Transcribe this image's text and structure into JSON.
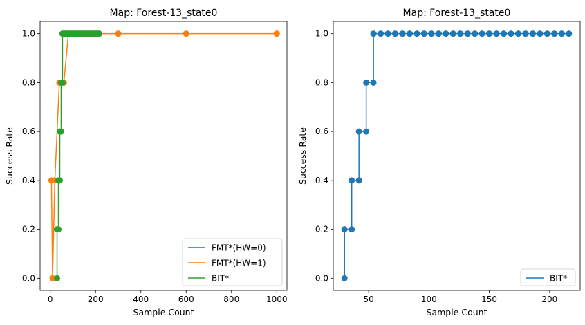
{
  "chart_data": [
    {
      "type": "line",
      "title": "Map: Forest-13_state0",
      "xlabel": "Sample Count",
      "ylabel": "Success Rate",
      "xlim": [
        -45,
        1045
      ],
      "ylim": [
        -0.05,
        1.05
      ],
      "xticks": [
        0,
        200,
        400,
        600,
        800,
        1000
      ],
      "yticks": [
        0.0,
        0.2,
        0.4,
        0.6,
        0.8,
        1.0
      ],
      "xtick_labels": [
        "0",
        "200",
        "400",
        "600",
        "800",
        "1000"
      ],
      "ytick_labels": [
        "0.0",
        "0.2",
        "0.4",
        "0.6",
        "0.8",
        "1.0"
      ],
      "legend_position": "lower-right",
      "series": [
        {
          "name": "FMT*(HW=0)",
          "color": "#1f77b4",
          "marker": "none",
          "x": [],
          "y": []
        },
        {
          "name": "FMT*(HW=1)",
          "color": "#ff7f0e",
          "marker": "circle",
          "x": [
            5,
            10,
            20,
            40,
            60,
            80,
            100,
            200,
            300,
            600,
            1000
          ],
          "y": [
            0.4,
            0.0,
            0.4,
            0.8,
            0.8,
            1.0,
            1.0,
            1.0,
            1.0,
            1.0,
            1.0
          ]
        },
        {
          "name": "BIT*",
          "color": "#2ca02c",
          "marker": "circle",
          "x": [
            30,
            30,
            36,
            36,
            42,
            42,
            48,
            48,
            54,
            54,
            60,
            66,
            72,
            78,
            84,
            90,
            96,
            102,
            108,
            114,
            120,
            126,
            132,
            138,
            144,
            150,
            156,
            162,
            168,
            174,
            180,
            186,
            192,
            198,
            204,
            210,
            216
          ],
          "y": [
            0.0,
            0.2,
            0.2,
            0.4,
            0.4,
            0.6,
            0.6,
            0.8,
            0.8,
            1.0,
            1.0,
            1.0,
            1.0,
            1.0,
            1.0,
            1.0,
            1.0,
            1.0,
            1.0,
            1.0,
            1.0,
            1.0,
            1.0,
            1.0,
            1.0,
            1.0,
            1.0,
            1.0,
            1.0,
            1.0,
            1.0,
            1.0,
            1.0,
            1.0,
            1.0,
            1.0,
            1.0
          ]
        }
      ]
    },
    {
      "type": "line",
      "title": "Map: Forest-13_state0",
      "xlabel": "Sample Count",
      "ylabel": "Success Rate",
      "xlim": [
        20.7,
        225.3
      ],
      "ylim": [
        -0.05,
        1.05
      ],
      "xticks": [
        50,
        100,
        150,
        200
      ],
      "yticks": [
        0.0,
        0.2,
        0.4,
        0.6,
        0.8,
        1.0
      ],
      "xtick_labels": [
        "50",
        "100",
        "150",
        "200"
      ],
      "ytick_labels": [
        "0.0",
        "0.2",
        "0.4",
        "0.6",
        "0.8",
        "1.0"
      ],
      "legend_position": "lower-right",
      "series": [
        {
          "name": "BIT*",
          "color": "#1f77b4",
          "marker": "circle",
          "x": [
            30,
            30,
            36,
            36,
            42,
            42,
            48,
            48,
            54,
            54,
            60,
            66,
            72,
            78,
            84,
            90,
            96,
            102,
            108,
            114,
            120,
            126,
            132,
            138,
            144,
            150,
            156,
            162,
            168,
            174,
            180,
            186,
            192,
            198,
            204,
            210,
            216
          ],
          "y": [
            0.0,
            0.2,
            0.2,
            0.4,
            0.4,
            0.6,
            0.6,
            0.8,
            0.8,
            1.0,
            1.0,
            1.0,
            1.0,
            1.0,
            1.0,
            1.0,
            1.0,
            1.0,
            1.0,
            1.0,
            1.0,
            1.0,
            1.0,
            1.0,
            1.0,
            1.0,
            1.0,
            1.0,
            1.0,
            1.0,
            1.0,
            1.0,
            1.0,
            1.0,
            1.0,
            1.0,
            1.0
          ]
        }
      ]
    }
  ]
}
